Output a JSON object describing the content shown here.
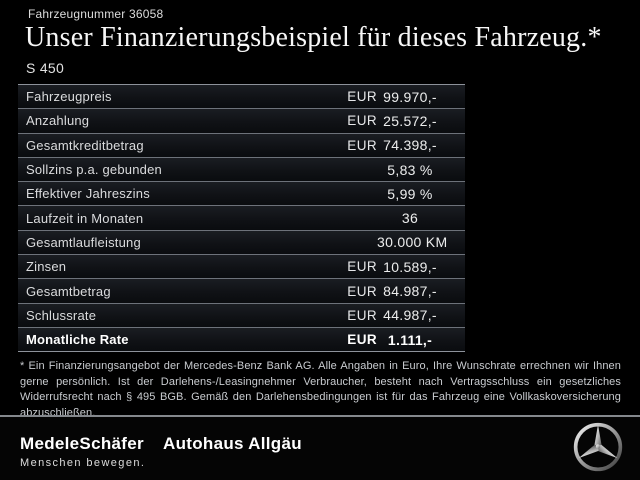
{
  "header": {
    "vehicle_number": "Fahrzeugnummer 36058",
    "title": "Unser Finanzierungsbeispiel für dieses Fahrzeug.*",
    "model": "S 450"
  },
  "finance_table": {
    "rows": [
      {
        "label": "Fahrzeugpreis",
        "currency": "EUR",
        "value": "99.970,-",
        "bold": false
      },
      {
        "label": "Anzahlung",
        "currency": "EUR",
        "value": "25.572,-",
        "bold": false
      },
      {
        "label": "Gesamtkreditbetrag",
        "currency": "EUR",
        "value": "74.398,-",
        "bold": false
      },
      {
        "label": "Sollzins p.a. gebunden",
        "currency": "",
        "value": "5,83 %",
        "bold": false
      },
      {
        "label": "Effektiver Jahreszins",
        "currency": "",
        "value": "5,99 %",
        "bold": false
      },
      {
        "label": "Laufzeit in Monaten",
        "currency": "",
        "value": "36",
        "bold": false
      },
      {
        "label": "Gesamtlaufleistung",
        "currency": "",
        "value": "30.000 KM",
        "bold": false
      },
      {
        "label": "Zinsen",
        "currency": "EUR",
        "value": "10.589,-",
        "bold": false
      },
      {
        "label": "Gesamtbetrag",
        "currency": "EUR",
        "value": "84.987,-",
        "bold": false
      },
      {
        "label": "Schlussrate",
        "currency": "EUR",
        "value": "44.987,-",
        "bold": false
      },
      {
        "label": "Monatliche Rate",
        "currency": "EUR",
        "value": "1.111,-",
        "bold": true
      }
    ]
  },
  "footnote": {
    "text": "* Ein Finanzierungsangebot der Mercedes-Benz Bank AG. Alle Angaben in Euro, Ihre Wunschrate errechnen wir Ihnen gerne persönlich. Ist der Darlehens-/Leasingnehmer Verbraucher, besteht nach Vertragsschluss ein gesetzliches Widerrufsrecht nach § 495 BGB. Gemäß den Darlehensbedingungen ist für das Fahrzeug eine Vollkaskoversicherung abzuschließen."
  },
  "footer": {
    "dealer_logo": "MedeleSchäfer",
    "dealer_slogan": "Menschen bewegen.",
    "dealer_name_2": "Autohaus Allgäu",
    "brand_logo_name": "mercedes-benz-star"
  },
  "colors": {
    "background": "#000000",
    "row_background_top": "#1a1d22",
    "row_background_bottom": "#0a0c0f",
    "separator_line": "#6d727a",
    "outer_line": "#8d929a",
    "text_primary": "#f7f7f7",
    "text_secondary": "#c9ccd0"
  }
}
